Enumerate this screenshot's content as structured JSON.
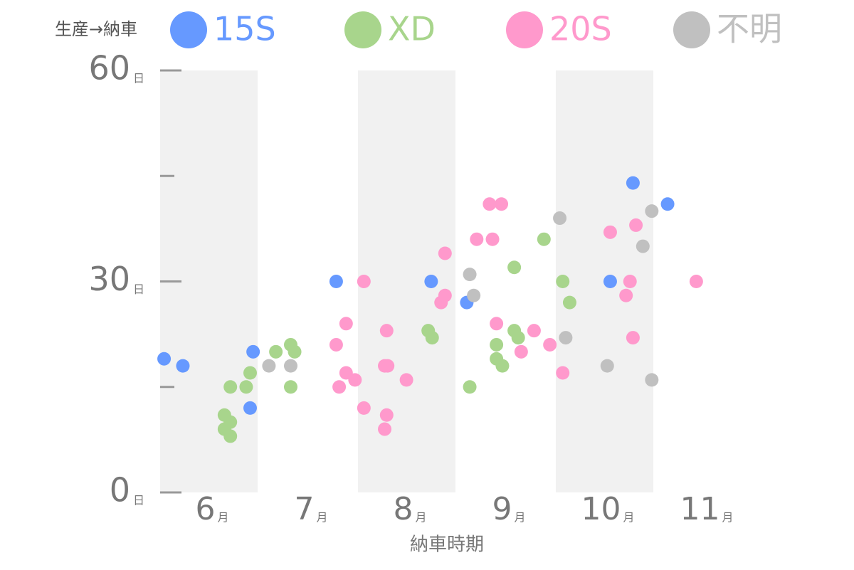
{
  "chart_data": {
    "type": "scatter",
    "legend_title": "生産→納車",
    "x_label": "納車時期",
    "x_unit": "月",
    "y_unit": "日",
    "xlim": [
      6,
      12
    ],
    "xticks": [
      {
        "value": 6.5,
        "label": "6"
      },
      {
        "value": 7.5,
        "label": "7"
      },
      {
        "value": 8.5,
        "label": "8"
      },
      {
        "value": 9.5,
        "label": "9"
      },
      {
        "value": 10.5,
        "label": "10"
      },
      {
        "value": 11.5,
        "label": "11"
      }
    ],
    "ylim": [
      0,
      60
    ],
    "yticks": [
      0,
      30,
      60
    ],
    "yticks_minor": [
      15,
      45
    ],
    "series": [
      {
        "name": "15S",
        "color": "#6699ff",
        "x": [
          6.04,
          6.23,
          6.94,
          6.91,
          7.78,
          8.74,
          9.1,
          10.78,
          11.13,
          10.55
        ],
        "values": [
          19,
          18,
          20,
          12,
          30,
          30,
          27,
          44,
          41,
          30
        ]
      },
      {
        "name": "XD",
        "color": "#a8d58c",
        "x": [
          6.65,
          6.71,
          6.65,
          6.71,
          6.71,
          6.87,
          6.91,
          7.17,
          7.32,
          7.36,
          7.32,
          8.71,
          8.75,
          9.13,
          9.4,
          9.4,
          9.46,
          9.58,
          9.62,
          9.58,
          9.88,
          10.07,
          10.14
        ],
        "values": [
          11,
          10,
          9,
          8,
          15,
          15,
          17,
          20,
          21,
          20,
          15,
          23,
          22,
          15,
          21,
          19,
          18,
          23,
          22,
          32,
          36,
          30,
          27
        ]
      },
      {
        "name": "20S",
        "color": "#ff99cc",
        "x": [
          7.78,
          7.81,
          7.88,
          7.88,
          7.97,
          8.06,
          8.06,
          8.27,
          8.3,
          8.29,
          8.27,
          8.29,
          8.49,
          8.84,
          8.88,
          8.88,
          9.2,
          9.36,
          9.33,
          9.45,
          9.4,
          9.65,
          9.78,
          9.94,
          10.07,
          10.55,
          10.71,
          10.75,
          10.81,
          10.78,
          11.42
        ],
        "values": [
          21,
          15,
          17,
          24,
          16,
          12,
          30,
          18,
          18,
          23,
          9,
          11,
          16,
          27,
          28,
          34,
          36,
          36,
          41,
          41,
          24,
          20,
          23,
          21,
          17,
          37,
          28,
          30,
          38,
          22,
          30
        ]
      },
      {
        "name": "不明",
        "color": "#c0c0c0",
        "x": [
          7.1,
          7.32,
          9.13,
          9.17,
          10.04,
          10.1,
          10.52,
          10.97,
          10.88,
          10.97
        ],
        "values": [
          18,
          18,
          31,
          28,
          39,
          22,
          18,
          40,
          35,
          16
        ]
      }
    ]
  }
}
